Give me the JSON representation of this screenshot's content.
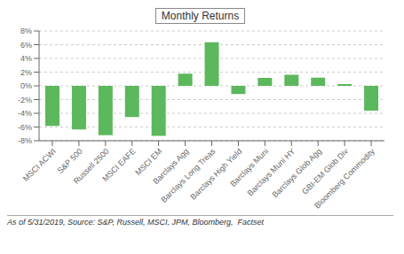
{
  "chart_data": {
    "type": "bar",
    "title": "Monthly Returns",
    "categories": [
      "MSCI ACWI",
      "S&P 500",
      "Russell 2500",
      "MSCI EAFE",
      "MSCI EM",
      "Barclays Agg",
      "Barclays Long Treas",
      "Barclays High Yield",
      "Barclays Muni",
      "Barclays Muni HY",
      "Barclays Glob Agg",
      "GBI-EM Glob Div",
      "Bloomberg Commodity"
    ],
    "values": [
      -5.85,
      -6.35,
      -7.2,
      -4.55,
      -7.3,
      1.78,
      6.35,
      -1.18,
      1.15,
      1.6,
      1.2,
      0.25,
      -3.6
    ],
    "color": "#5cb85c",
    "ylim": [
      -8,
      8
    ],
    "yticks": [
      {
        "value": -8,
        "label": "-8%"
      },
      {
        "value": -6,
        "label": "-6%"
      },
      {
        "value": -4,
        "label": "-4%"
      },
      {
        "value": -2,
        "label": "-2%"
      },
      {
        "value": 0,
        "label": "0%"
      },
      {
        "value": 2,
        "label": "2%"
      },
      {
        "value": 4,
        "label": "4%"
      },
      {
        "value": 6,
        "label": "6%"
      },
      {
        "value": 8,
        "label": "8%"
      }
    ],
    "grid": true,
    "annotations": [
      "As of 5/31/2019, Source: S&P, Russell, MSCI, JPM, Bloomberg,  Factset"
    ]
  }
}
